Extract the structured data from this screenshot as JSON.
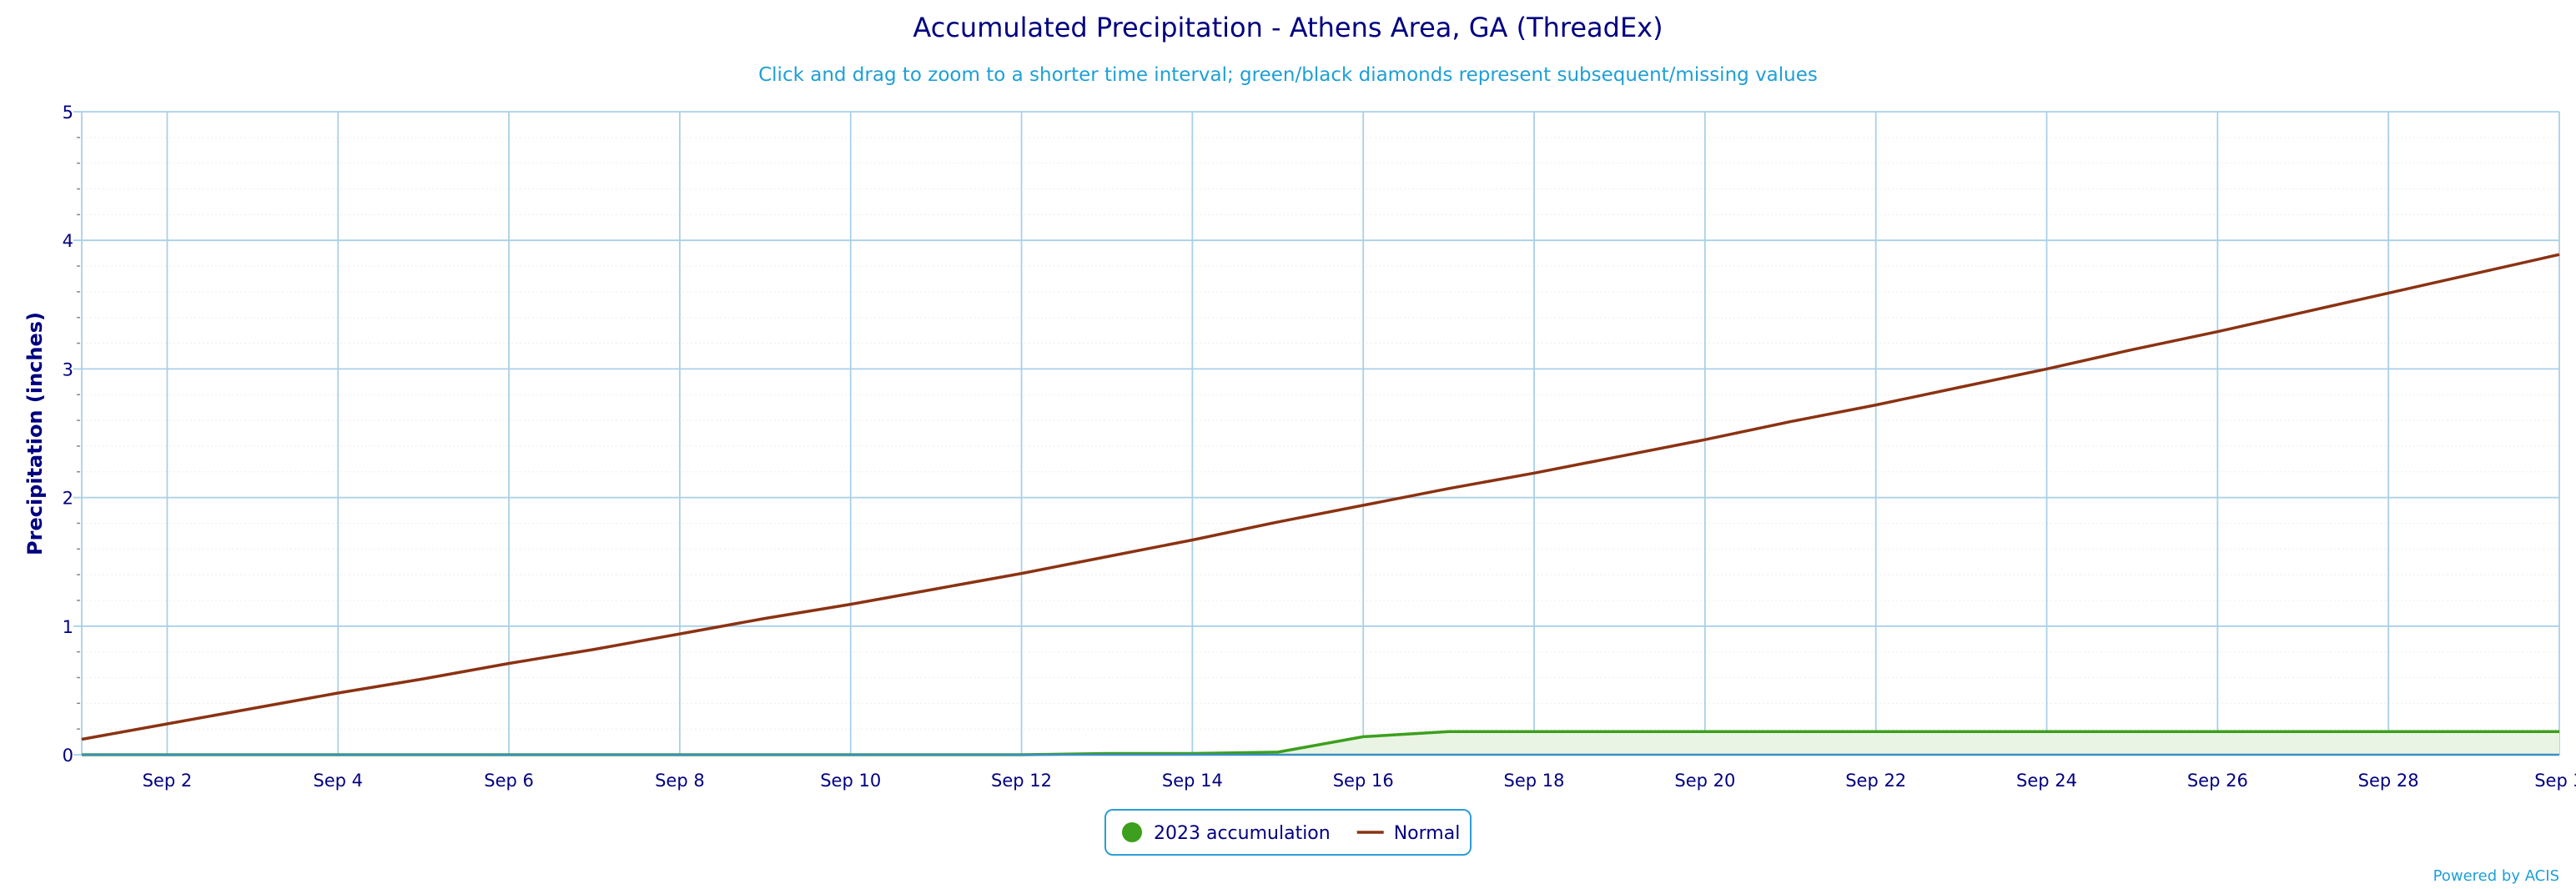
{
  "chart_data": {
    "type": "area",
    "title": "Accumulated Precipitation - Athens Area, GA (ThreadEx)",
    "subtitle": "Click and drag to zoom to a shorter time interval; green/black diamonds represent subsequent/missing values",
    "ylabel": "Precipitation (inches)",
    "xlabel": "",
    "x_range": [
      1,
      30
    ],
    "ylim": [
      0,
      5
    ],
    "y_ticks": [
      0,
      1,
      2,
      3,
      4,
      5
    ],
    "x_ticks": [
      {
        "day": 2,
        "label": "Sep 2"
      },
      {
        "day": 4,
        "label": "Sep 4"
      },
      {
        "day": 6,
        "label": "Sep 6"
      },
      {
        "day": 8,
        "label": "Sep 8"
      },
      {
        "day": 10,
        "label": "Sep 10"
      },
      {
        "day": 12,
        "label": "Sep 12"
      },
      {
        "day": 14,
        "label": "Sep 14"
      },
      {
        "day": 16,
        "label": "Sep 16"
      },
      {
        "day": 18,
        "label": "Sep 18"
      },
      {
        "day": 20,
        "label": "Sep 20"
      },
      {
        "day": 22,
        "label": "Sep 22"
      },
      {
        "day": 24,
        "label": "Sep 24"
      },
      {
        "day": 26,
        "label": "Sep 26"
      },
      {
        "day": 28,
        "label": "Sep 28"
      },
      {
        "day": 30,
        "label": "Sep 3"
      }
    ],
    "grid": true,
    "legend_position": "bottom-center",
    "series": [
      {
        "name": "2023 accumulation",
        "type": "area",
        "color": "#3c9f1d",
        "fill": "#e9f4e4",
        "legend_symbol": "circle",
        "x": [
          1,
          2,
          3,
          4,
          5,
          6,
          7,
          8,
          9,
          10,
          11,
          12,
          13,
          14,
          15,
          16,
          17,
          18,
          19,
          20,
          21,
          22,
          23,
          24,
          25,
          26,
          27,
          28,
          29,
          30
        ],
        "values": [
          0,
          0,
          0,
          0,
          0,
          0,
          0,
          0,
          0,
          0,
          0,
          0,
          0.01,
          0.01,
          0.02,
          0.14,
          0.18,
          0.18,
          0.18,
          0.18,
          0.18,
          0.18,
          0.18,
          0.18,
          0.18,
          0.18,
          0.18,
          0.18,
          0.18,
          0.18
        ]
      },
      {
        "name": "Normal",
        "type": "line",
        "color": "#8b3212",
        "legend_symbol": "line",
        "x": [
          1,
          2,
          3,
          4,
          5,
          6,
          7,
          8,
          9,
          10,
          11,
          12,
          13,
          14,
          15,
          16,
          17,
          18,
          19,
          20,
          21,
          22,
          23,
          24,
          25,
          26,
          27,
          28,
          29,
          30
        ],
        "values": [
          0.12,
          0.24,
          0.36,
          0.48,
          0.59,
          0.71,
          0.82,
          0.94,
          1.06,
          1.17,
          1.29,
          1.41,
          1.54,
          1.67,
          1.81,
          1.94,
          2.07,
          2.19,
          2.32,
          2.45,
          2.59,
          2.72,
          2.86,
          3.0,
          3.15,
          3.29,
          3.44,
          3.59,
          3.74,
          3.89
        ]
      }
    ]
  },
  "credit": "Powered by ACIS"
}
